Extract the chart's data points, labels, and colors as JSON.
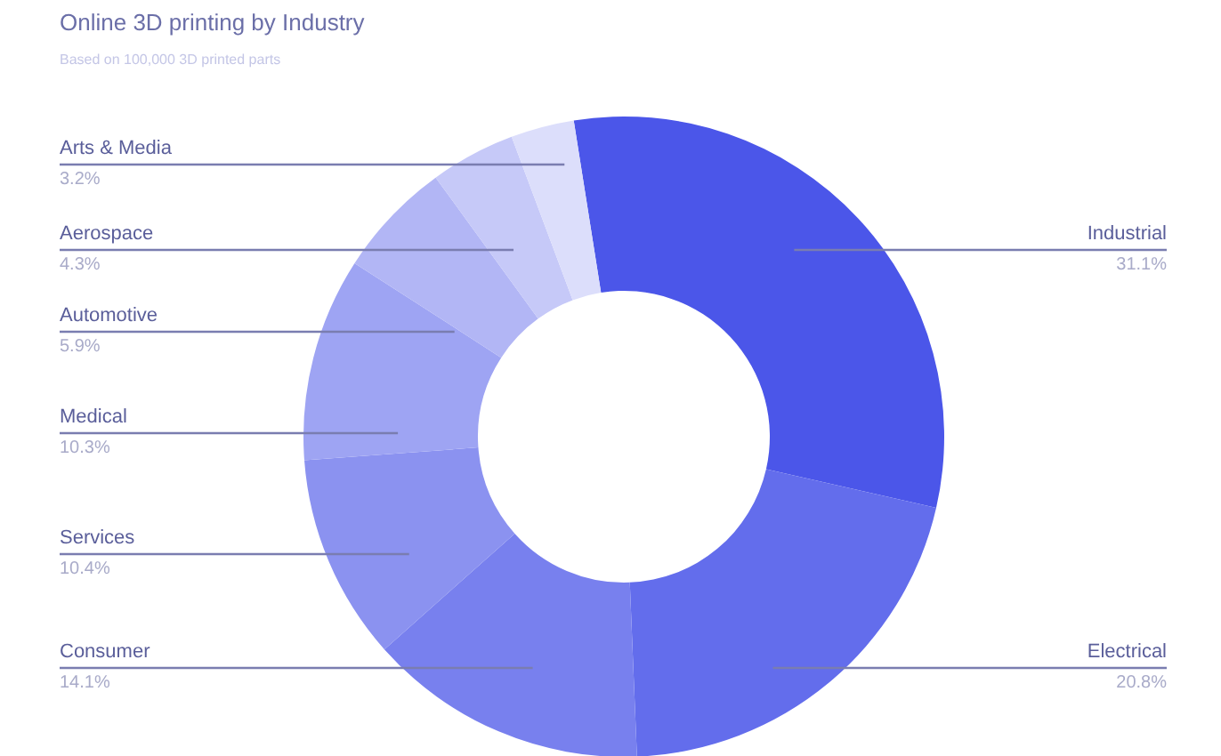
{
  "chart_data": {
    "type": "donut",
    "title": "Online 3D printing by Industry",
    "subtitle": "Based on 100,000 3D printed parts",
    "categories": [
      "Industrial",
      "Electrical",
      "Consumer",
      "Services",
      "Medical",
      "Automotive",
      "Aerospace",
      "Arts & Media"
    ],
    "values": [
      31.1,
      20.8,
      14.1,
      10.4,
      10.3,
      5.9,
      4.3,
      3.2
    ],
    "value_labels": [
      "31.1%",
      "20.8%",
      "14.1%",
      "10.4%",
      "10.3%",
      "5.9%",
      "4.3%",
      "3.2%"
    ],
    "colors": [
      "#4b56e9",
      "#636dec",
      "#7880ee",
      "#8b92f0",
      "#9ea4f3",
      "#b2b6f5",
      "#c6c9f8",
      "#dcdefb"
    ]
  }
}
